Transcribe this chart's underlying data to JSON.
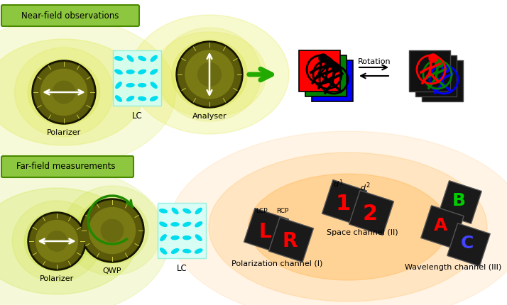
{
  "bg_color": "#ffffff",
  "label_box_color": "#8dc63f",
  "label_box_edge": "#5a9a00",
  "near_field_label": "Near-field observations",
  "far_field_label": "Far-field measurements",
  "polarizer_label": "Polarizer",
  "analyser_label": "Analyser",
  "lc_label": "LC",
  "qwp_label": "QWP",
  "rotation_label": "Rotation",
  "space_channel_label": "Space channel (II)",
  "pol_channel_label": "Polarization channel (I)",
  "wl_channel_label": "Wavelength channel (III)",
  "lcp_label": "LCP",
  "rcp_label": "RCP",
  "d1_label": "d",
  "d2_label": "d",
  "fig_width": 7.14,
  "fig_height": 4.3
}
